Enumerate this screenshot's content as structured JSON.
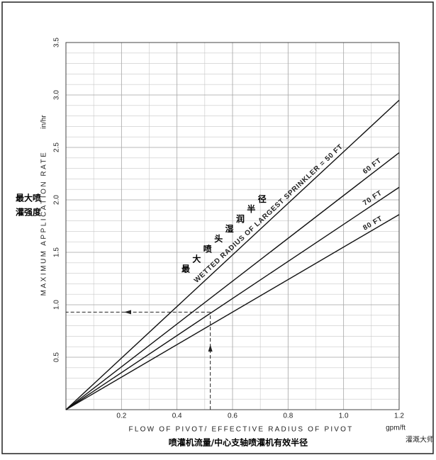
{
  "chart_data": {
    "type": "line",
    "x_label": "FLOW OF PIVOT/ EFFECTIVE RADIUS OF PIVOT",
    "x_unit": "gpm/ft",
    "y_label": "MAXIMUM APPLICATION RATE",
    "y_unit": "in/hr",
    "y_label_cn": [
      "最大喷",
      "灌强度"
    ],
    "x_label_cn": "喷灌机流量/中心支轴喷灌机有效半径",
    "curve_label_cn": [
      "最",
      "大",
      "喷",
      "头",
      "湿",
      "润",
      "半",
      "径"
    ],
    "x": [
      0,
      1.2
    ],
    "series": [
      {
        "name": "WETTED RADIUS OF LARGEST SPRINKLER = 50 FT",
        "color": "#111111",
        "values": [
          0,
          2.95
        ]
      },
      {
        "name": "60 FT",
        "color": "#111111",
        "values": [
          0,
          2.45
        ]
      },
      {
        "name": "70 FT",
        "color": "#111111",
        "values": [
          0,
          2.12
        ]
      },
      {
        "name": "80 FT",
        "color": "#111111",
        "values": [
          0,
          1.86
        ]
      }
    ],
    "guide": {
      "x": 0.52,
      "y": 0.93
    },
    "xlim": [
      0,
      1.2
    ],
    "xticks": [
      0.2,
      0.4,
      0.6,
      0.8,
      {
        "value": 1.0,
        "label": "1.0"
      },
      1.2
    ],
    "ylim": [
      0,
      3.5
    ],
    "yticks": [
      0.5,
      {
        "value": 1.0,
        "label": "1.0"
      },
      1.5,
      {
        "value": 2.0,
        "label": "2.0"
      },
      2.5,
      {
        "value": 3.0,
        "label": "3.0"
      },
      3.5
    ],
    "grid": true,
    "watermark": "灌溉大师"
  }
}
